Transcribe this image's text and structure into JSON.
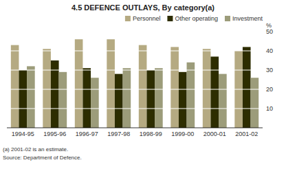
{
  "chart_data": {
    "type": "bar",
    "title": "4.5  DEFENCE OUTLAYS, By category(a)",
    "categories": [
      "1994-95",
      "1995-96",
      "1996-97",
      "1997-98",
      "1998-99",
      "1999-00",
      "2000-01",
      "2001-02"
    ],
    "series": [
      {
        "name": "Personnel",
        "color": "#b5aa82",
        "values": [
          43,
          41,
          46,
          46,
          43,
          42,
          41,
          40
        ]
      },
      {
        "name": "Other operating",
        "color": "#2d2d00",
        "values": [
          30,
          35,
          31,
          28,
          30,
          29,
          37,
          42
        ]
      },
      {
        "name": "Investment",
        "color": "#9c9c7a",
        "values": [
          32,
          29,
          26,
          31,
          31,
          34,
          28,
          26
        ]
      }
    ],
    "ylabel": "%",
    "ylim": [
      0,
      50
    ],
    "yticks": [
      10,
      20,
      30,
      40,
      50
    ],
    "grid": true,
    "legend": "upper right",
    "annotations": [
      "(a) 2001-02 is an estimate.",
      "Source: Department of Defence."
    ]
  }
}
